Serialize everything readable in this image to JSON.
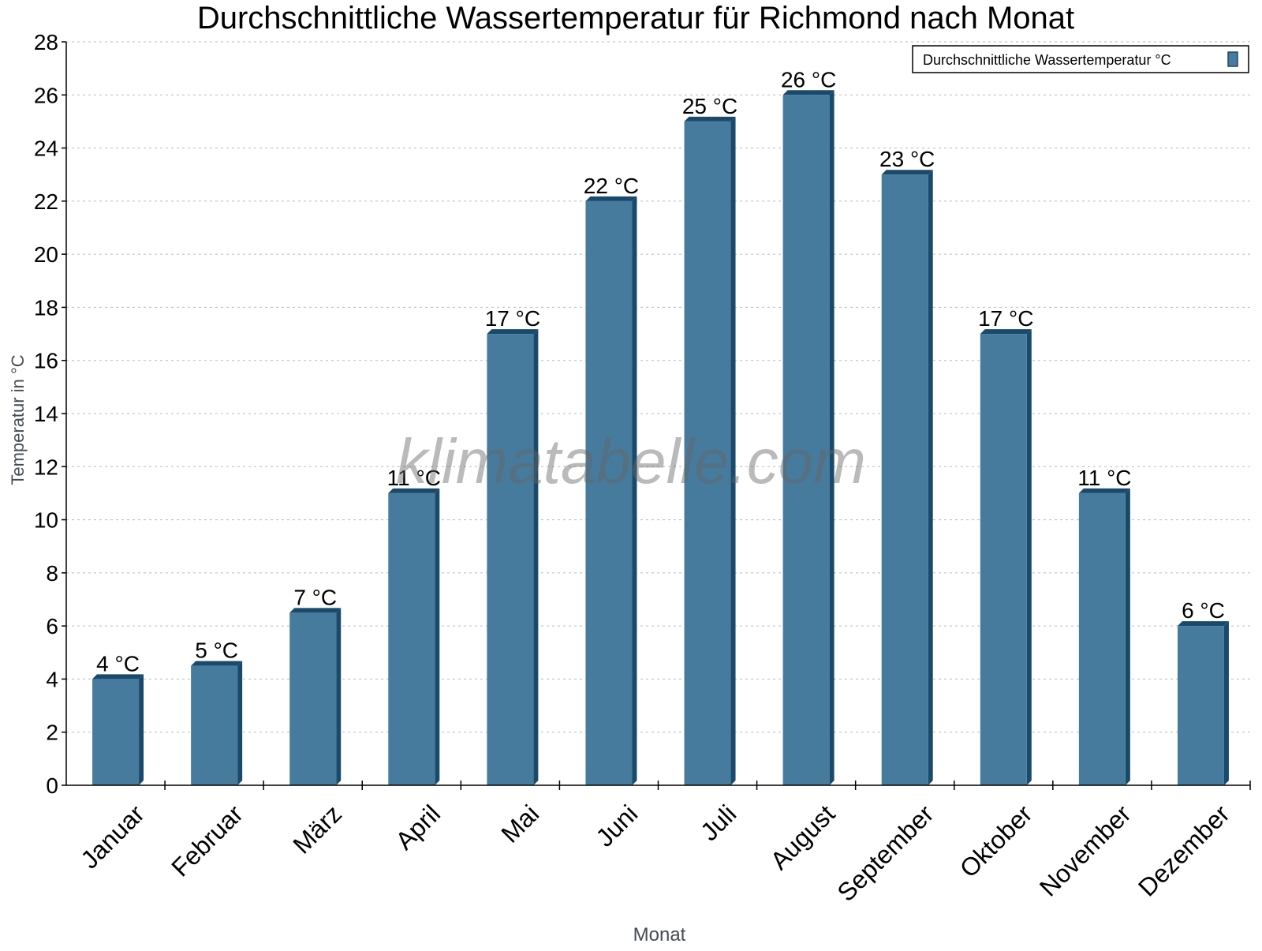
{
  "chart_data": {
    "type": "bar",
    "title": "Durchschnittliche Wassertemperatur für Richmond nach Monat",
    "xlabel": "Monat",
    "ylabel": "Temperatur in °C",
    "categories": [
      "Januar",
      "Februar",
      "März",
      "April",
      "Mai",
      "Juni",
      "Juli",
      "August",
      "September",
      "Oktober",
      "November",
      "Dezember"
    ],
    "series": [
      {
        "name": "Durchschnittliche Wassertemperatur °C",
        "values": [
          4,
          4.5,
          6.5,
          11,
          17,
          22,
          25,
          26,
          23,
          17,
          11,
          6
        ],
        "labels": [
          "4 °C",
          "5 °C",
          "7 °C",
          "11 °C",
          "17 °C",
          "22 °C",
          "25 °C",
          "26 °C",
          "23 °C",
          "17 °C",
          "11 °C",
          "6 °C"
        ],
        "color": "#467b9d",
        "shade_color": "#1a4a6b"
      }
    ],
    "ylim": [
      0,
      28
    ],
    "yticks": [
      0,
      2,
      4,
      6,
      8,
      10,
      12,
      14,
      16,
      18,
      20,
      22,
      24,
      26,
      28
    ],
    "grid": "horizontal dotted",
    "legend_position": "top-right",
    "watermark": "klimatabelle.com"
  }
}
